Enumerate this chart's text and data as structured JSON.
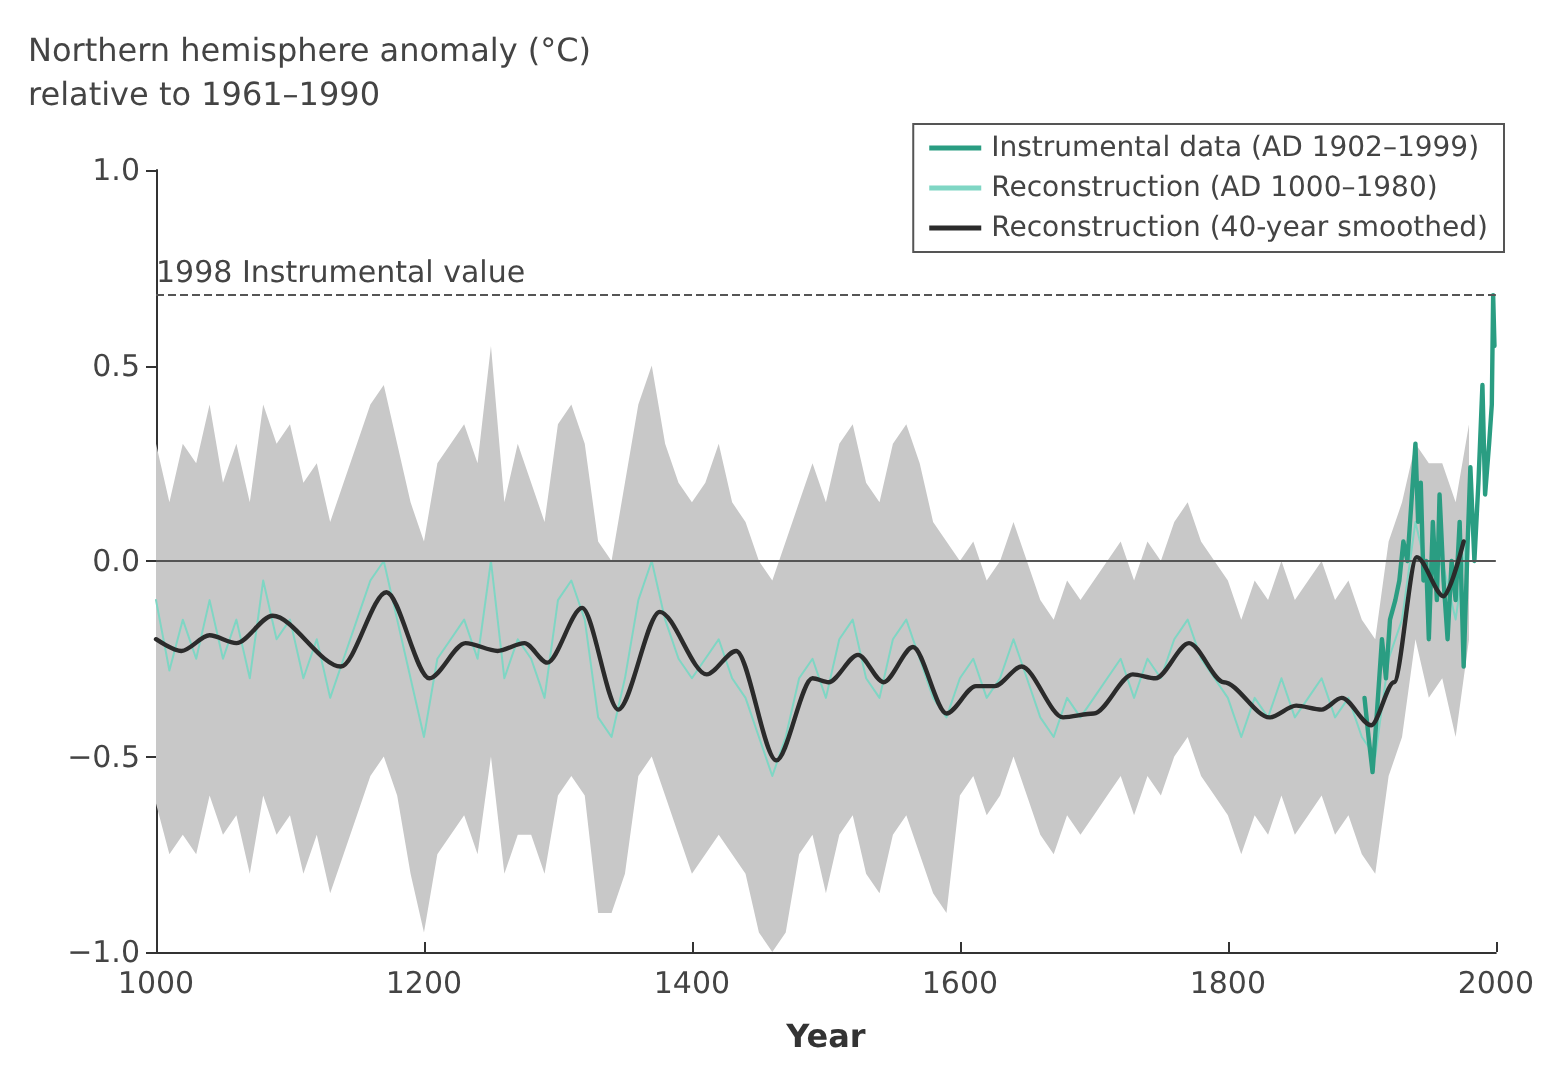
{
  "chart_data": {
    "type": "line",
    "xlabel": "Year",
    "ylabel": "Northern hemisphere anomaly (°C)\nrelative to 1961–1990",
    "xlim": [
      1000,
      2000
    ],
    "xticks": [
      1000,
      1200,
      1400,
      1600,
      1800,
      2000
    ],
    "ylim": [
      -1,
      1
    ],
    "yticks": [
      {
        "value": -1,
        "label": "−1.0"
      },
      {
        "value": -0.5,
        "label": "−0.5"
      },
      {
        "value": 0,
        "label": "0.0"
      },
      {
        "value": 0.5,
        "label": "0.5"
      },
      {
        "value": 1,
        "label": "1.0"
      }
    ],
    "grid": false,
    "legend": "top right",
    "marker": "none",
    "line_style": "solid",
    "ref_lines": [
      {
        "axis": "y",
        "value": 0,
        "label": null,
        "color": "#555555",
        "line_style": "solid"
      },
      {
        "axis": "y",
        "value": 0.68,
        "label": "1998 Instrumental value",
        "color": "#555555",
        "line_style": "dashed"
      }
    ],
    "series": [
      {
        "name": "Instrumental data (AD 1902–1999)",
        "color": "#2a9d82",
        "x": [
          1902,
          1905,
          1908,
          1911,
          1915,
          1918,
          1921,
          1925,
          1928,
          1931,
          1934,
          1937,
          1940,
          1942,
          1944,
          1946,
          1948,
          1950,
          1953,
          1956,
          1958,
          1961,
          1964,
          1967,
          1970,
          1973,
          1976,
          1979,
          1981,
          1984,
          1987,
          1990,
          1992,
          1995,
          1997,
          1998,
          1999
        ],
        "values": [
          -0.35,
          -0.45,
          -0.54,
          -0.4,
          -0.2,
          -0.3,
          -0.15,
          -0.1,
          -0.05,
          0.05,
          0,
          0.15,
          0.3,
          0.1,
          0.2,
          -0.05,
          0,
          -0.2,
          0.1,
          -0.1,
          0.17,
          -0.05,
          -0.2,
          0,
          -0.1,
          0.1,
          -0.27,
          0.05,
          0.24,
          0,
          0.2,
          0.45,
          0.17,
          0.3,
          0.4,
          0.68,
          0.55
        ]
      },
      {
        "name": "Reconstruction (AD 1000–1980)",
        "color": "#7fd6c4",
        "x": [
          1000,
          1010,
          1020,
          1030,
          1040,
          1050,
          1060,
          1070,
          1080,
          1090,
          1100,
          1110,
          1120,
          1130,
          1140,
          1150,
          1160,
          1170,
          1180,
          1190,
          1200,
          1210,
          1220,
          1230,
          1240,
          1250,
          1260,
          1270,
          1280,
          1290,
          1300,
          1310,
          1320,
          1330,
          1340,
          1350,
          1360,
          1370,
          1380,
          1390,
          1400,
          1410,
          1420,
          1430,
          1440,
          1450,
          1460,
          1470,
          1480,
          1490,
          1500,
          1510,
          1520,
          1530,
          1540,
          1550,
          1560,
          1570,
          1580,
          1590,
          1600,
          1610,
          1620,
          1630,
          1640,
          1650,
          1660,
          1670,
          1680,
          1690,
          1700,
          1710,
          1720,
          1730,
          1740,
          1750,
          1760,
          1770,
          1780,
          1790,
          1800,
          1810,
          1820,
          1830,
          1840,
          1850,
          1860,
          1870,
          1880,
          1890,
          1900,
          1910,
          1920,
          1930,
          1940,
          1950,
          1960,
          1970,
          1980
        ],
        "values": [
          -0.1,
          -0.28,
          -0.15,
          -0.25,
          -0.1,
          -0.25,
          -0.15,
          -0.3,
          -0.05,
          -0.2,
          -0.15,
          -0.3,
          -0.2,
          -0.35,
          -0.25,
          -0.15,
          -0.05,
          0,
          -0.15,
          -0.3,
          -0.45,
          -0.25,
          -0.2,
          -0.15,
          -0.25,
          0,
          -0.3,
          -0.2,
          -0.25,
          -0.35,
          -0.1,
          -0.05,
          -0.15,
          -0.4,
          -0.45,
          -0.3,
          -0.1,
          0,
          -0.15,
          -0.25,
          -0.3,
          -0.25,
          -0.2,
          -0.3,
          -0.35,
          -0.45,
          -0.55,
          -0.45,
          -0.3,
          -0.25,
          -0.35,
          -0.2,
          -0.15,
          -0.3,
          -0.35,
          -0.2,
          -0.15,
          -0.25,
          -0.35,
          -0.4,
          -0.3,
          -0.25,
          -0.35,
          -0.3,
          -0.2,
          -0.3,
          -0.4,
          -0.45,
          -0.35,
          -0.4,
          -0.35,
          -0.3,
          -0.25,
          -0.35,
          -0.25,
          -0.3,
          -0.2,
          -0.15,
          -0.25,
          -0.3,
          -0.35,
          -0.45,
          -0.35,
          -0.4,
          -0.3,
          -0.4,
          -0.35,
          -0.3,
          -0.4,
          -0.35,
          -0.45,
          -0.5,
          -0.25,
          -0.15,
          0.1,
          -0.05,
          0,
          -0.15,
          0.1
        ],
        "lower": [
          -0.62,
          -0.75,
          -0.7,
          -0.75,
          -0.6,
          -0.7,
          -0.65,
          -0.8,
          -0.6,
          -0.7,
          -0.65,
          -0.8,
          -0.7,
          -0.85,
          -0.75,
          -0.65,
          -0.55,
          -0.5,
          -0.6,
          -0.8,
          -0.95,
          -0.75,
          -0.7,
          -0.65,
          -0.75,
          -0.5,
          -0.8,
          -0.7,
          -0.7,
          -0.8,
          -0.6,
          -0.55,
          -0.6,
          -0.9,
          -0.9,
          -0.8,
          -0.55,
          -0.5,
          -0.6,
          -0.7,
          -0.8,
          -0.75,
          -0.7,
          -0.75,
          -0.8,
          -0.95,
          -1,
          -0.95,
          -0.75,
          -0.7,
          -0.85,
          -0.7,
          -0.65,
          -0.8,
          -0.85,
          -0.7,
          -0.65,
          -0.75,
          -0.85,
          -0.9,
          -0.6,
          -0.55,
          -0.65,
          -0.6,
          -0.5,
          -0.6,
          -0.7,
          -0.75,
          -0.65,
          -0.7,
          -0.65,
          -0.6,
          -0.55,
          -0.65,
          -0.55,
          -0.6,
          -0.5,
          -0.45,
          -0.55,
          -0.6,
          -0.65,
          -0.75,
          -0.65,
          -0.7,
          -0.6,
          -0.7,
          -0.65,
          -0.6,
          -0.7,
          -0.65,
          -0.75,
          -0.8,
          -0.55,
          -0.45,
          -0.2,
          -0.35,
          -0.3,
          -0.45,
          -0.2
        ],
        "upper": [
          0.3,
          0.15,
          0.3,
          0.25,
          0.4,
          0.2,
          0.3,
          0.15,
          0.4,
          0.3,
          0.35,
          0.2,
          0.25,
          0.1,
          0.2,
          0.3,
          0.4,
          0.45,
          0.3,
          0.15,
          0.05,
          0.25,
          0.3,
          0.35,
          0.25,
          0.55,
          0.15,
          0.3,
          0.2,
          0.1,
          0.35,
          0.4,
          0.3,
          0.05,
          0,
          0.2,
          0.4,
          0.5,
          0.3,
          0.2,
          0.15,
          0.2,
          0.3,
          0.15,
          0.1,
          0,
          -0.05,
          0.05,
          0.15,
          0.25,
          0.15,
          0.3,
          0.35,
          0.2,
          0.15,
          0.3,
          0.35,
          0.25,
          0.1,
          0.05,
          0,
          0.05,
          -0.05,
          0,
          0.1,
          0,
          -0.1,
          -0.15,
          -0.05,
          -0.1,
          -0.05,
          0,
          0.05,
          -0.05,
          0.05,
          0,
          0.1,
          0.15,
          0.05,
          0,
          -0.05,
          -0.15,
          -0.05,
          -0.1,
          0,
          -0.1,
          -0.05,
          0,
          -0.1,
          -0.05,
          -0.15,
          -0.2,
          0.05,
          0.15,
          0.3,
          0.25,
          0.25,
          0.15,
          0.35
        ]
      },
      {
        "name": "Reconstruction (40-year smoothed)",
        "color": "#2b2b2b",
        "x": [
          1000,
          1019,
          1040,
          1060,
          1087,
          1138,
          1172,
          1204,
          1231,
          1255,
          1275,
          1292,
          1318,
          1345,
          1376,
          1411,
          1433,
          1463,
          1490,
          1502,
          1524,
          1543,
          1565,
          1590,
          1612,
          1626,
          1646,
          1677,
          1700,
          1729,
          1746,
          1771,
          1797,
          1831,
          1851,
          1870,
          1885,
          1907,
          1924,
          1941,
          1961,
          1976
        ],
        "values": [
          -0.2,
          -0.23,
          -0.19,
          -0.21,
          -0.14,
          -0.27,
          -0.08,
          -0.3,
          -0.21,
          -0.23,
          -0.21,
          -0.26,
          -0.12,
          -0.38,
          -0.13,
          -0.29,
          -0.23,
          -0.51,
          -0.3,
          -0.31,
          -0.24,
          -0.31,
          -0.22,
          -0.39,
          -0.32,
          -0.32,
          -0.27,
          -0.4,
          -0.39,
          -0.29,
          -0.3,
          -0.21,
          -0.31,
          -0.4,
          -0.37,
          -0.38,
          -0.35,
          -0.42,
          -0.31,
          0.01,
          -0.09,
          0.05
        ]
      }
    ]
  }
}
